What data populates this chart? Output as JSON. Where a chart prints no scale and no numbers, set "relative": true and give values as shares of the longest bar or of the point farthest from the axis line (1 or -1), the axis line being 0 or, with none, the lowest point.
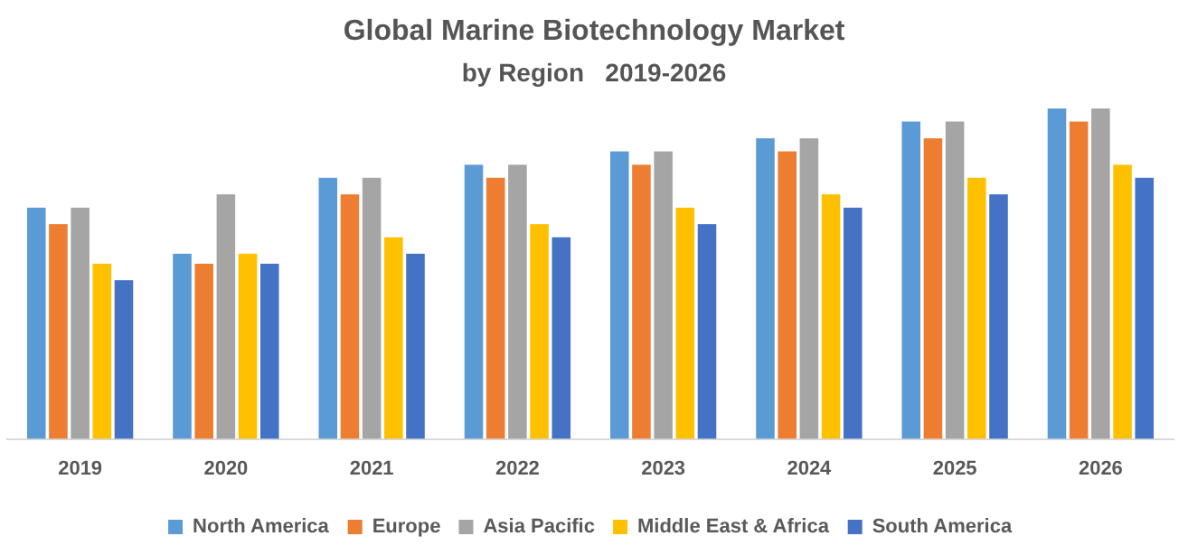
{
  "chart_data": {
    "type": "bar",
    "title": "Global Marine Biotechnology Market",
    "subtitle": "by Region   2019-2026",
    "relative": true,
    "legend": "bottom",
    "categories": [
      "2019",
      "2020",
      "2021",
      "2022",
      "2023",
      "2024",
      "2025",
      "2026"
    ],
    "series": [
      {
        "name": "North America",
        "color": "#5b9bd5",
        "values": [
          0.7,
          0.56,
          0.79,
          0.83,
          0.87,
          0.91,
          0.96,
          1
        ]
      },
      {
        "name": "Europe",
        "color": "#ed7d31",
        "values": [
          0.65,
          0.53,
          0.74,
          0.79,
          0.83,
          0.87,
          0.91,
          0.96
        ]
      },
      {
        "name": "Asia Pacific",
        "color": "#a5a5a5",
        "values": [
          0.7,
          0.74,
          0.79,
          0.83,
          0.87,
          0.91,
          0.96,
          1
        ]
      },
      {
        "name": "Middle East & Africa",
        "color": "#ffc000",
        "values": [
          0.53,
          0.56,
          0.61,
          0.65,
          0.7,
          0.74,
          0.79,
          0.83
        ]
      },
      {
        "name": "South America",
        "color": "#4472c4",
        "values": [
          0.48,
          0.53,
          0.56,
          0.61,
          0.65,
          0.7,
          0.74,
          0.79
        ]
      }
    ]
  }
}
